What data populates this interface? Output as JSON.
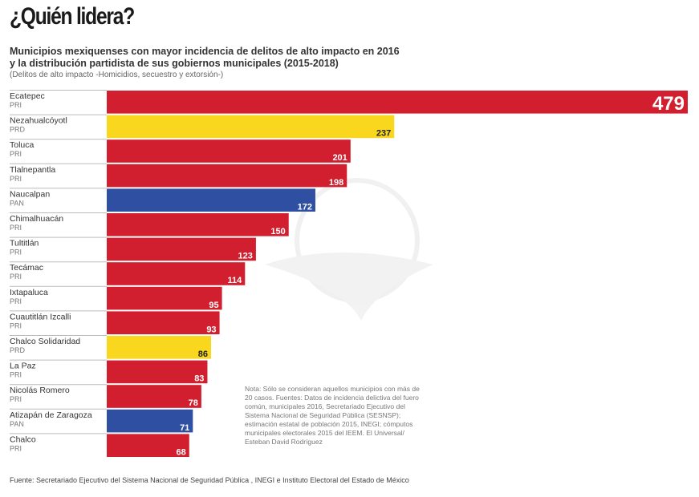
{
  "title": "¿Quién lidera?",
  "subtitle_line1": "Municipios mexiquenses con mayor incidencia de delitos de alto impacto en 2016",
  "subtitle_line2": "y la distribución partidista de sus gobiernos municipales (2015-2018)",
  "subtitle_note": "(Delitos de alto impacto -Homicidios, secuestro y extorsión-)",
  "note": "Nota: Sólo se consideran aquellos municipios con más de 20 casos. Fuentes: Datos de incidencia delictiva del fuero común, municipales 2016, Secretariado Ejecutivo del Sistema Nacional de Seguridad Pública (SESNSP); estimación estatal de población 2015, INEGI; cómputos municipales electorales 2015 del IEEM. El Universal/ Esteban David Rodríguez",
  "source": "Fuente: Secretariado Ejecutivo del Sistema Nacional de Seguridad Pública , INEGI e Instituto Electoral del Estado de México",
  "colors": {
    "PRI": "#d11f2f",
    "PRD": "#f8d71e",
    "PAN": "#2f4fa2"
  },
  "chart_data": {
    "type": "bar",
    "orientation": "horizontal",
    "title": "¿Quién lidera?",
    "xlim": [
      0,
      479
    ],
    "categories": [
      "Ecatepec",
      "Nezahualcóyotl",
      "Toluca",
      "Tlalnepantla",
      "Naucalpan",
      "Chimalhuacán",
      "Tultitlán",
      "Tecámac",
      "Ixtapaluca",
      "Cuautitlán Izcalli",
      "Chalco Solidaridad",
      "La Paz",
      "Nicolás Romero",
      "Atizapán de Zaragoza",
      "Chalco"
    ],
    "parties": [
      "PRI",
      "PRD",
      "PRI",
      "PRI",
      "PAN",
      "PRI",
      "PRI",
      "PRI",
      "PRI",
      "PRI",
      "PRD",
      "PRI",
      "PRI",
      "PAN",
      "PRI"
    ],
    "values": [
      479,
      237,
      201,
      198,
      172,
      150,
      123,
      114,
      95,
      93,
      86,
      83,
      78,
      71,
      68
    ]
  }
}
